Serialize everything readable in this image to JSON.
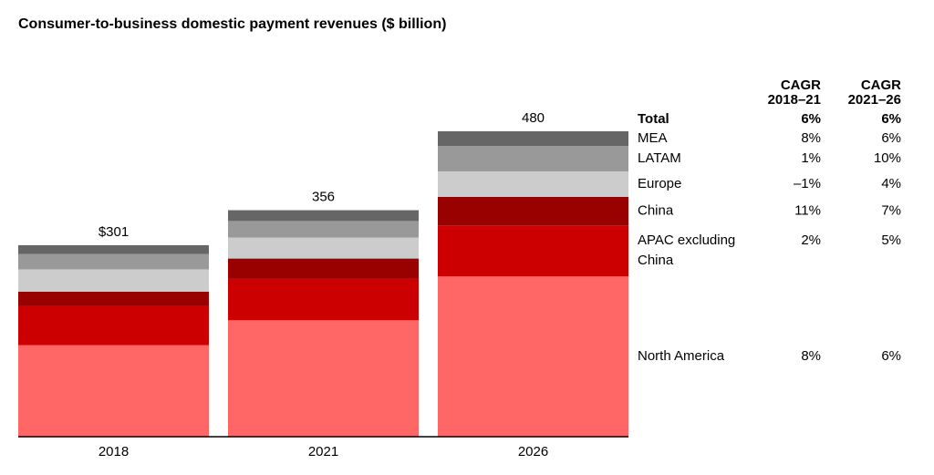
{
  "chart_data": {
    "type": "stacked_bar",
    "title": "Consumer-to-business domestic payment revenues ($ billion)",
    "categories": [
      "2018",
      "2021",
      "2026"
    ],
    "totals": [
      301,
      356,
      480
    ],
    "total_labels": [
      "$301",
      "356",
      "480"
    ],
    "table_headers": [
      [
        "CAGR",
        "2018–21"
      ],
      [
        "CAGR",
        "2021–26"
      ]
    ],
    "total_name": "Total",
    "total_cagr": [
      "6%",
      "6%"
    ],
    "series": [
      {
        "name": "North America",
        "color": "#ff6666",
        "values": [
          144,
          183,
          252
        ],
        "cagr": [
          "8%",
          "6%"
        ]
      },
      {
        "name": "APAC excluding China",
        "color": "#cc0000",
        "values": [
          61,
          65,
          80
        ],
        "cagr": [
          "2%",
          "5%"
        ]
      },
      {
        "name": "China",
        "color": "#990000",
        "values": [
          23,
          32,
          45
        ],
        "cagr": [
          "11%",
          "7%"
        ]
      },
      {
        "name": "Europe",
        "color": "#cccccc",
        "values": [
          35,
          33,
          40
        ],
        "cagr": [
          "–1%",
          "4%"
        ]
      },
      {
        "name": "LATAM",
        "color": "#999999",
        "values": [
          24,
          26,
          40
        ],
        "cagr": [
          "1%",
          "10%"
        ]
      },
      {
        "name": "MEA",
        "color": "#666666",
        "values": [
          14,
          17,
          23
        ],
        "cagr": [
          "8%",
          "6%"
        ]
      }
    ]
  }
}
